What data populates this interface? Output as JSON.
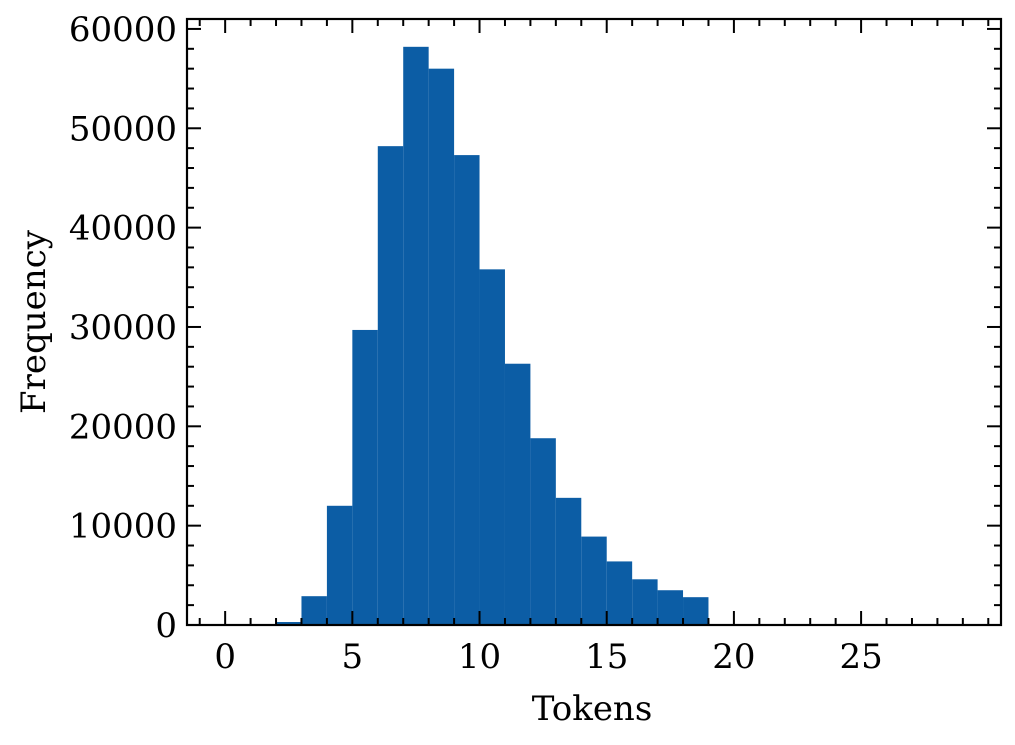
{
  "chart_data": {
    "type": "bar",
    "subtype": "histogram",
    "title": "",
    "xlabel": "Tokens",
    "ylabel": "Frequency",
    "xlim": [
      -1.5,
      30.5
    ],
    "ylim": [
      0,
      61000
    ],
    "x_ticks": [
      0,
      5,
      10,
      15,
      20,
      25
    ],
    "x_tick_labels": [
      "0",
      "5",
      "10",
      "15",
      "20",
      "25"
    ],
    "y_ticks": [
      0,
      10000,
      20000,
      30000,
      40000,
      50000,
      60000
    ],
    "y_tick_labels": [
      "0",
      "10000",
      "20000",
      "30000",
      "40000",
      "50000",
      "60000"
    ],
    "grid": false,
    "bar_color": "#0c5da5",
    "bins": [
      {
        "x0": 2,
        "x1": 3,
        "value": 300
      },
      {
        "x0": 3,
        "x1": 4,
        "value": 2900
      },
      {
        "x0": 4,
        "x1": 5,
        "value": 12000
      },
      {
        "x0": 5,
        "x1": 6,
        "value": 29700
      },
      {
        "x0": 6,
        "x1": 7,
        "value": 48200
      },
      {
        "x0": 7,
        "x1": 8,
        "value": 58200
      },
      {
        "x0": 8,
        "x1": 9,
        "value": 56000
      },
      {
        "x0": 9,
        "x1": 10,
        "value": 47300
      },
      {
        "x0": 10,
        "x1": 11,
        "value": 35800
      },
      {
        "x0": 11,
        "x1": 12,
        "value": 26300
      },
      {
        "x0": 12,
        "x1": 13,
        "value": 18800
      },
      {
        "x0": 13,
        "x1": 14,
        "value": 12800
      },
      {
        "x0": 14,
        "x1": 15,
        "value": 8900
      },
      {
        "x0": 15,
        "x1": 16,
        "value": 6400
      },
      {
        "x0": 16,
        "x1": 17,
        "value": 4600
      },
      {
        "x0": 17,
        "x1": 18,
        "value": 3500
      },
      {
        "x0": 18,
        "x1": 19,
        "value": 2800
      }
    ]
  }
}
